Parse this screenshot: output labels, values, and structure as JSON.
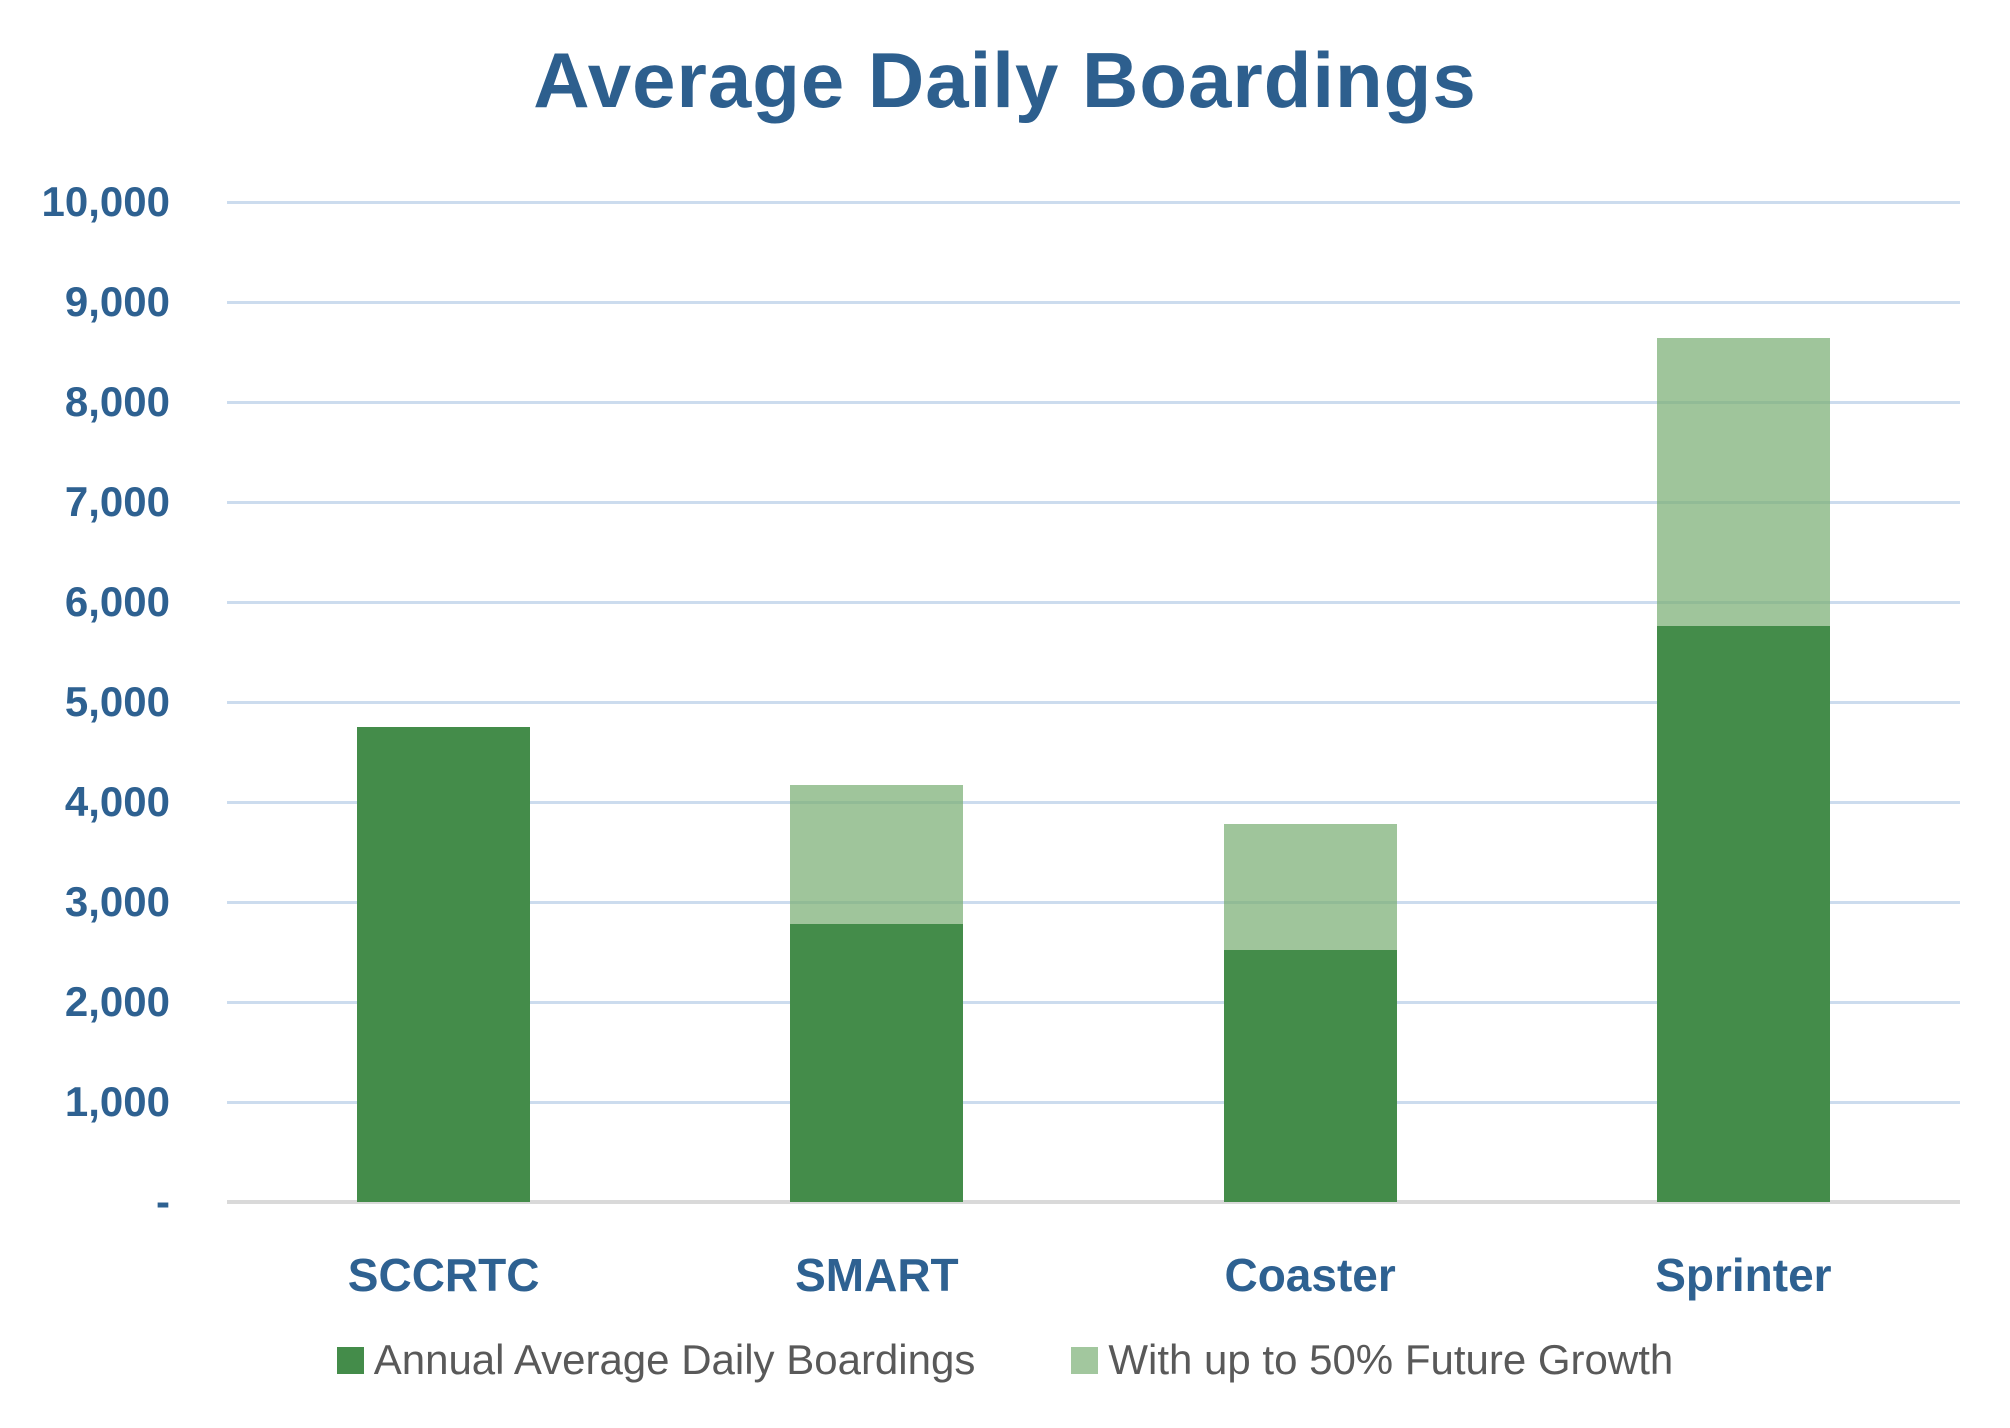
{
  "title": "Average Daily Boardings",
  "colors": {
    "title_blue": "#2D5F8E",
    "axis_label_blue": "#2E6191",
    "dark_green": "#448C4A",
    "light_green": "#A2C79E",
    "light_green_bar_rgba": "rgba(122,175,116,0.72)",
    "gridline_blue": "#CCDCEE",
    "baseline_gray": "#D9D9D9",
    "legend_text_gray": "#595959",
    "background": "#FFFFFF"
  },
  "chart_data": {
    "type": "bar",
    "stacked": true,
    "title": "Average Daily Boardings",
    "categories": [
      "SCCRTC",
      "SMART",
      "Coaster",
      "Sprinter"
    ],
    "series": [
      {
        "name": "Annual Average Daily Boardings",
        "color_key": "dark_green",
        "values": [
          4750,
          2780,
          2520,
          5760
        ]
      },
      {
        "name": "With up to 50% Future Growth",
        "color_key": "light_green",
        "values": [
          0,
          1390,
          1260,
          2880
        ]
      }
    ],
    "totals_with_growth": [
      4750,
      4170,
      3780,
      8640
    ],
    "xlabel": "",
    "ylabel": "",
    "ylim": [
      0,
      10000
    ],
    "ytick_step": 1000,
    "ytick_labels_bottom_to_top": [
      "-",
      "1,000",
      "2,000",
      "3,000",
      "4,000",
      "5,000",
      "6,000",
      "7,000",
      "8,000",
      "9,000",
      "10,000"
    ],
    "grid": true,
    "legend_position": "bottom"
  }
}
